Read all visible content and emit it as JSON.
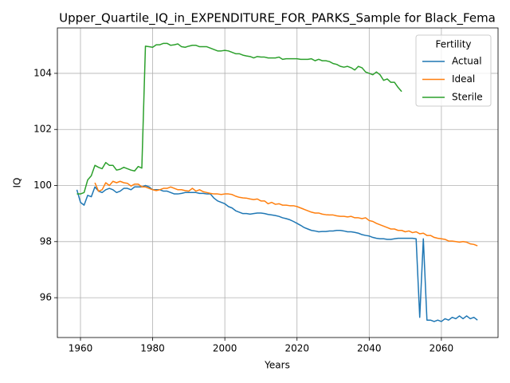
{
  "chart_data": {
    "type": "line",
    "title": "Upper_Quartile_IQ_in_EXPENDITURE_FOR_PARKS_Sample for Black_Fema",
    "x_label": "Years",
    "y_label": "IQ",
    "legend_title": "Fertility",
    "legend": "upper right",
    "grid": true,
    "xlim": [
      1953.6,
      2075.7
    ],
    "xticks": [
      1960,
      1980,
      2000,
      2020,
      2040,
      2060
    ],
    "ylim": [
      94.58,
      105.62
    ],
    "yticks": [
      96,
      98,
      100,
      102,
      104
    ],
    "x": [
      1959,
      1960,
      1961,
      1962,
      1963,
      1964,
      1965,
      1966,
      1967,
      1968,
      1969,
      1970,
      1971,
      1972,
      1973,
      1974,
      1975,
      1976,
      1977,
      1978,
      1979,
      1980,
      1981,
      1982,
      1983,
      1984,
      1985,
      1986,
      1987,
      1988,
      1989,
      1990,
      1991,
      1992,
      1993,
      1994,
      1995,
      1996,
      1997,
      1998,
      1999,
      2000,
      2001,
      2002,
      2003,
      2004,
      2005,
      2006,
      2007,
      2008,
      2009,
      2010,
      2011,
      2012,
      2013,
      2014,
      2015,
      2016,
      2017,
      2018,
      2019,
      2020,
      2021,
      2022,
      2023,
      2024,
      2025,
      2026,
      2027,
      2028,
      2029,
      2030,
      2031,
      2032,
      2033,
      2034,
      2035,
      2036,
      2037,
      2038,
      2039,
      2040,
      2041,
      2042,
      2043,
      2044,
      2045,
      2046,
      2047,
      2048,
      2049,
      2050,
      2051,
      2052,
      2053,
      2054,
      2055,
      2056,
      2057,
      2058,
      2059,
      2060,
      2061,
      2062,
      2063,
      2064,
      2065,
      2066,
      2067,
      2068,
      2069,
      2070
    ],
    "series": [
      {
        "name": "Actual",
        "color": "#1f77b4",
        "values": [
          99.85,
          99.4,
          99.3,
          99.65,
          99.6,
          99.95,
          99.8,
          99.75,
          99.85,
          99.9,
          99.85,
          99.75,
          99.8,
          99.9,
          99.9,
          99.85,
          99.95,
          99.95,
          99.95,
          100.0,
          99.95,
          99.85,
          99.85,
          99.85,
          99.8,
          99.8,
          99.75,
          99.7,
          99.7,
          99.72,
          99.75,
          99.75,
          99.75,
          99.75,
          99.72,
          99.72,
          99.7,
          99.7,
          99.55,
          99.45,
          99.4,
          99.35,
          99.25,
          99.2,
          99.1,
          99.05,
          99.0,
          99.0,
          98.98,
          99.0,
          99.02,
          99.02,
          99.0,
          98.97,
          98.95,
          98.93,
          98.9,
          98.85,
          98.82,
          98.78,
          98.72,
          98.65,
          98.58,
          98.5,
          98.45,
          98.4,
          98.38,
          98.35,
          98.36,
          98.36,
          98.38,
          98.38,
          98.4,
          98.4,
          98.38,
          98.35,
          98.35,
          98.33,
          98.3,
          98.25,
          98.22,
          98.2,
          98.15,
          98.12,
          98.1,
          98.1,
          98.08,
          98.08,
          98.1,
          98.12,
          98.12,
          98.12,
          98.12,
          98.12,
          98.1,
          95.3,
          98.1,
          95.2,
          95.2,
          95.15,
          95.2,
          95.15,
          95.25,
          95.2,
          95.3,
          95.25,
          95.35,
          95.25,
          95.35,
          95.25,
          95.3,
          95.2
        ]
      },
      {
        "name": "Ideal",
        "color": "#ff7f0e",
        "values": [
          null,
          null,
          null,
          null,
          null,
          100.1,
          99.8,
          99.85,
          100.1,
          100.0,
          100.15,
          100.1,
          100.15,
          100.1,
          100.08,
          99.98,
          100.05,
          100.05,
          99.95,
          99.95,
          99.9,
          99.85,
          99.82,
          99.85,
          99.9,
          99.9,
          99.95,
          99.9,
          99.85,
          99.85,
          99.82,
          99.8,
          99.9,
          99.8,
          99.85,
          99.78,
          99.75,
          99.72,
          99.7,
          99.7,
          99.68,
          99.7,
          99.7,
          99.68,
          99.62,
          99.58,
          99.56,
          99.55,
          99.52,
          99.5,
          99.52,
          99.45,
          99.45,
          99.35,
          99.4,
          99.33,
          99.35,
          99.3,
          99.3,
          99.28,
          99.28,
          99.25,
          99.2,
          99.15,
          99.1,
          99.05,
          99.02,
          99.02,
          98.98,
          98.96,
          98.95,
          98.95,
          98.92,
          98.9,
          98.9,
          98.88,
          98.9,
          98.85,
          98.85,
          98.82,
          98.85,
          98.75,
          98.72,
          98.65,
          98.6,
          98.55,
          98.5,
          98.45,
          98.45,
          98.4,
          98.4,
          98.35,
          98.38,
          98.32,
          98.35,
          98.28,
          98.3,
          98.22,
          98.22,
          98.15,
          98.12,
          98.1,
          98.08,
          98.02,
          98.02,
          98.0,
          97.98,
          98.0,
          97.98,
          97.92,
          97.9,
          97.85
        ]
      },
      {
        "name": "Sterile",
        "color": "#2ca02c",
        "values": [
          99.7,
          99.7,
          99.75,
          100.2,
          100.35,
          100.72,
          100.65,
          100.6,
          100.82,
          100.72,
          100.72,
          100.55,
          100.58,
          100.65,
          100.6,
          100.55,
          100.52,
          100.68,
          100.62,
          104.97,
          104.95,
          104.93,
          105.02,
          105.02,
          105.07,
          105.07,
          105.0,
          105.02,
          105.05,
          104.95,
          104.93,
          104.97,
          105.0,
          105.0,
          104.95,
          104.95,
          104.95,
          104.9,
          104.85,
          104.8,
          104.8,
          104.82,
          104.8,
          104.75,
          104.7,
          104.7,
          104.65,
          104.62,
          104.6,
          104.55,
          104.6,
          104.58,
          104.58,
          104.55,
          104.55,
          104.55,
          104.58,
          104.5,
          104.52,
          104.52,
          104.52,
          104.52,
          104.5,
          104.5,
          104.5,
          104.52,
          104.45,
          104.5,
          104.45,
          104.45,
          104.42,
          104.35,
          104.32,
          104.25,
          104.22,
          104.25,
          104.2,
          104.12,
          104.25,
          104.2,
          104.05,
          104.0,
          103.95,
          104.05,
          103.95,
          103.75,
          103.8,
          103.68,
          103.68,
          103.5,
          103.35,
          null,
          null,
          null,
          null,
          null,
          null,
          null,
          null,
          null,
          null,
          null,
          null,
          null,
          null,
          null,
          null,
          null,
          null,
          null,
          null,
          null
        ]
      }
    ]
  }
}
